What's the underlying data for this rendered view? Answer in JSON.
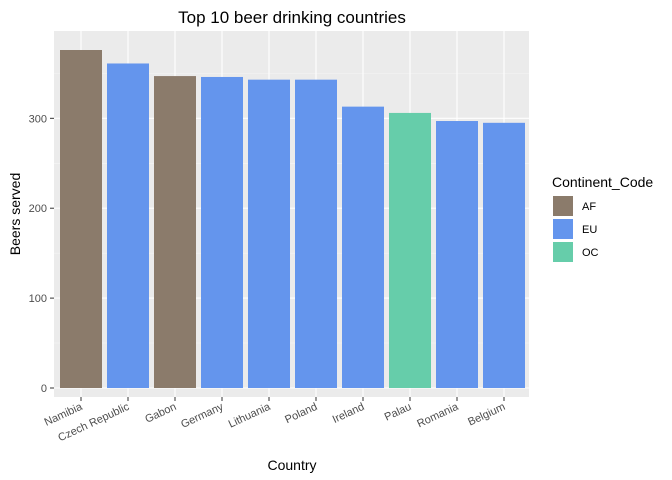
{
  "chart_data": {
    "type": "bar",
    "title": "Top 10 beer drinking countries",
    "xlabel": "Country",
    "ylabel": "Beers served",
    "categories": [
      "Namibia",
      "Czech Republic",
      "Gabon",
      "Germany",
      "Lithuania",
      "Poland",
      "Ireland",
      "Palau",
      "Romania",
      "Belgium"
    ],
    "values": [
      376,
      361,
      347,
      346,
      343,
      343,
      313,
      306,
      297,
      295
    ],
    "groups": [
      "AF",
      "EU",
      "AF",
      "EU",
      "EU",
      "EU",
      "EU",
      "OC",
      "EU",
      "EU"
    ],
    "ylim": [
      0,
      395
    ],
    "yticks": [
      0,
      100,
      200,
      300
    ],
    "grid": true,
    "legend": {
      "title": "Continent_Code",
      "position": "right",
      "items": [
        {
          "name": "AF",
          "color": "#8B7B6B"
        },
        {
          "name": "EU",
          "color": "#6495ED"
        },
        {
          "name": "OC",
          "color": "#66CDAA"
        }
      ]
    },
    "colors": {
      "panel_background": "#EBEBEB",
      "grid_major": "#FFFFFF",
      "grid_minor": "#F5F5F5",
      "tick_text": "#4D4D4D",
      "tick_mark": "#333333"
    }
  }
}
